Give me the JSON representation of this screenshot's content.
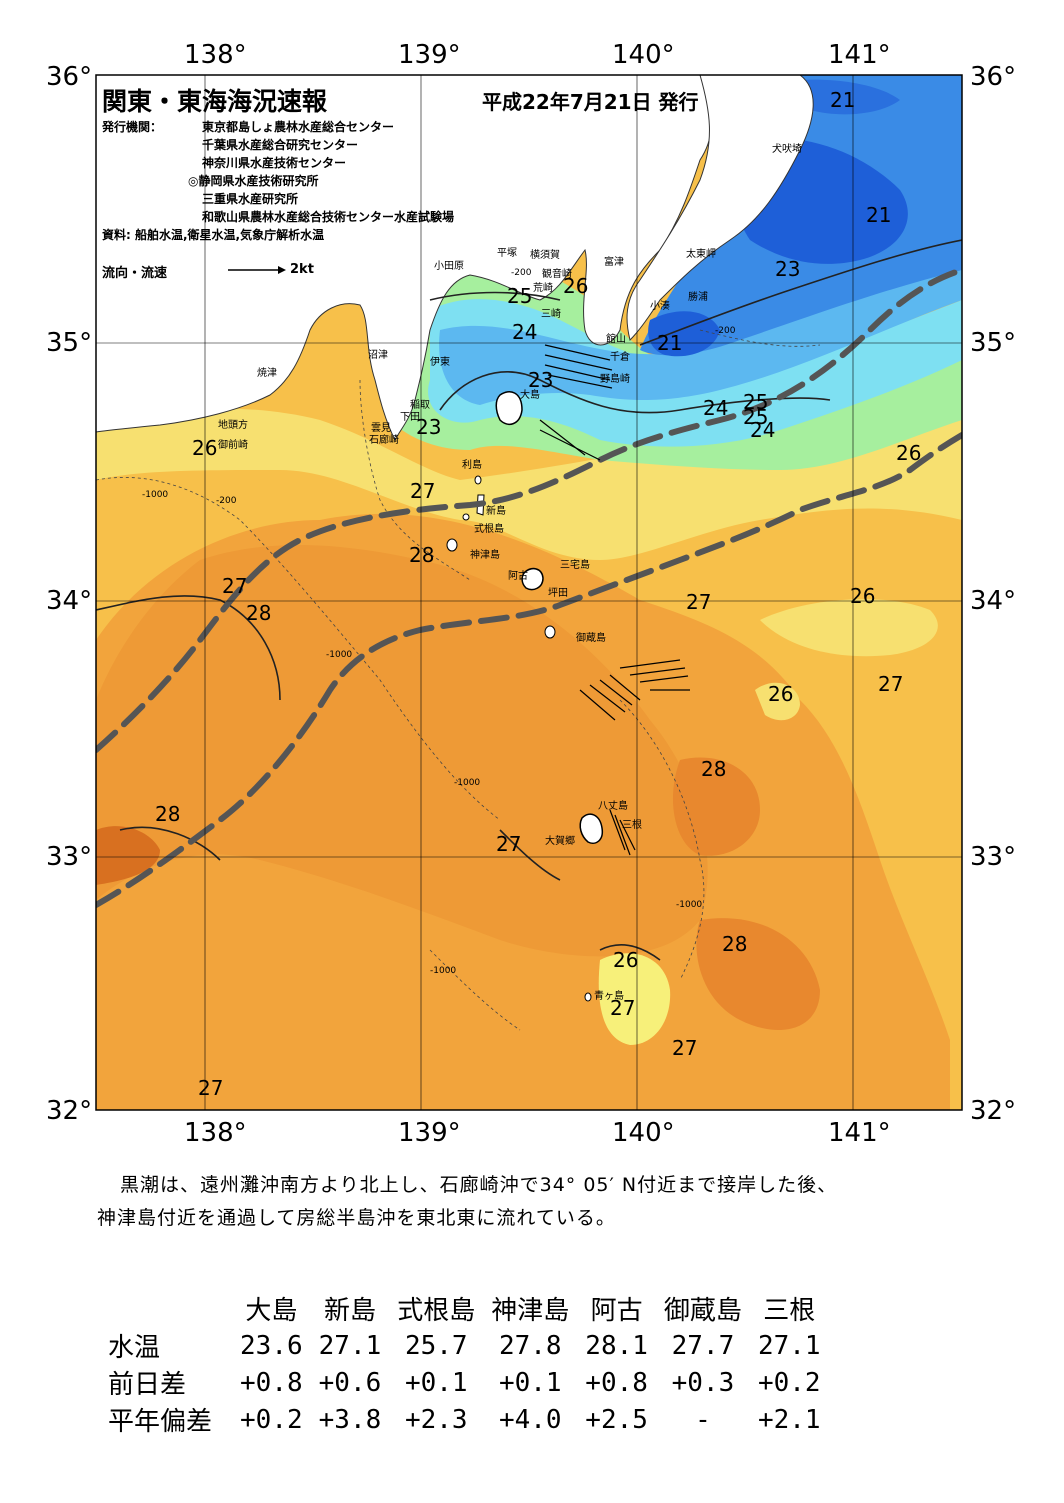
{
  "header": {
    "title": "関東・東海海況速報",
    "date": "平成22年7月21日 発行",
    "issuer_label": "発行機関：",
    "issuers": [
      "東京都島しょ農林水産総合センター",
      "千葉県水産総合研究センター",
      "神奈川県水産技術センター",
      "◎静岡県水産技術研究所",
      "三重県水産研究所",
      "和歌山県農林水産総合技術センター水産試験場"
    ],
    "sources": "資料: 船舶水温,衛星水温,気象庁解析水温",
    "current_legend": "流向・流速",
    "current_scale": "2kt"
  },
  "axes": {
    "lon_labels": [
      "138°",
      "139°",
      "140°",
      "141°"
    ],
    "lat_labels": [
      "36°",
      "35°",
      "34°",
      "33°",
      "32°"
    ]
  },
  "places": [
    "小田原",
    "平塚",
    "横須賀",
    "観音崎",
    "富津",
    "荒崎",
    "三崎",
    "館山",
    "千倉",
    "野島崎",
    "小湊",
    "勝浦",
    "太東岬",
    "犬吠埼",
    "焼津",
    "沼津",
    "伊東",
    "稲取",
    "下田",
    "雲見",
    "石廊崎",
    "地頭方",
    "御前崎",
    "大島",
    "利島",
    "新島",
    "式根島",
    "神津島",
    "三宅島",
    "阿古",
    "坪田",
    "御蔵島",
    "八丈島",
    "三根",
    "大賀郷",
    "青ヶ島"
  ],
  "temperature_labels": [
    "21",
    "21",
    "23",
    "21",
    "25",
    "26",
    "24",
    "23",
    "23",
    "24",
    "25",
    "25",
    "24",
    "26",
    "26",
    "27",
    "28",
    "27",
    "28",
    "27",
    "26",
    "28",
    "26",
    "27",
    "28",
    "27",
    "28",
    "26",
    "27",
    "27",
    "27"
  ],
  "depth_labels": [
    "-200",
    "-1000"
  ],
  "colors": {
    "t21": "#1e5fd8",
    "t22": "#3a8be6",
    "t23": "#5cb8f0",
    "t24": "#7ee0f2",
    "t25": "#a6ef9e",
    "t26": "#f7f07a",
    "t27": "#f7c04a",
    "t28": "#f0a040",
    "t29": "#e8882e",
    "t30": "#d26a20",
    "land": "#ffffff",
    "kuroshio": "#555555"
  },
  "description": [
    "黒潮は、遠州灘沖南方より北上し、石廊崎沖で34° 05′ N付近まで接岸した後、",
    "神津島付近を通過して房総半島沖を東北東に流れている。"
  ],
  "table": {
    "columns": [
      "大島",
      "新島",
      "式根島",
      "神津島",
      "阿古",
      "御蔵島",
      "三根"
    ],
    "rows": [
      {
        "label": "水温",
        "values": [
          "23.6",
          "27.1",
          "25.7",
          "27.8",
          "28.1",
          "27.7",
          "27.1"
        ]
      },
      {
        "label": "前日差",
        "values": [
          "+0.8",
          "+0.6",
          "+0.1",
          "+0.1",
          "+0.8",
          "+0.3",
          "+0.2"
        ]
      },
      {
        "label": "平年偏差",
        "values": [
          "+0.2",
          "+3.8",
          "+2.3",
          "+4.0",
          "+2.5",
          "-",
          "+2.1"
        ]
      }
    ]
  }
}
